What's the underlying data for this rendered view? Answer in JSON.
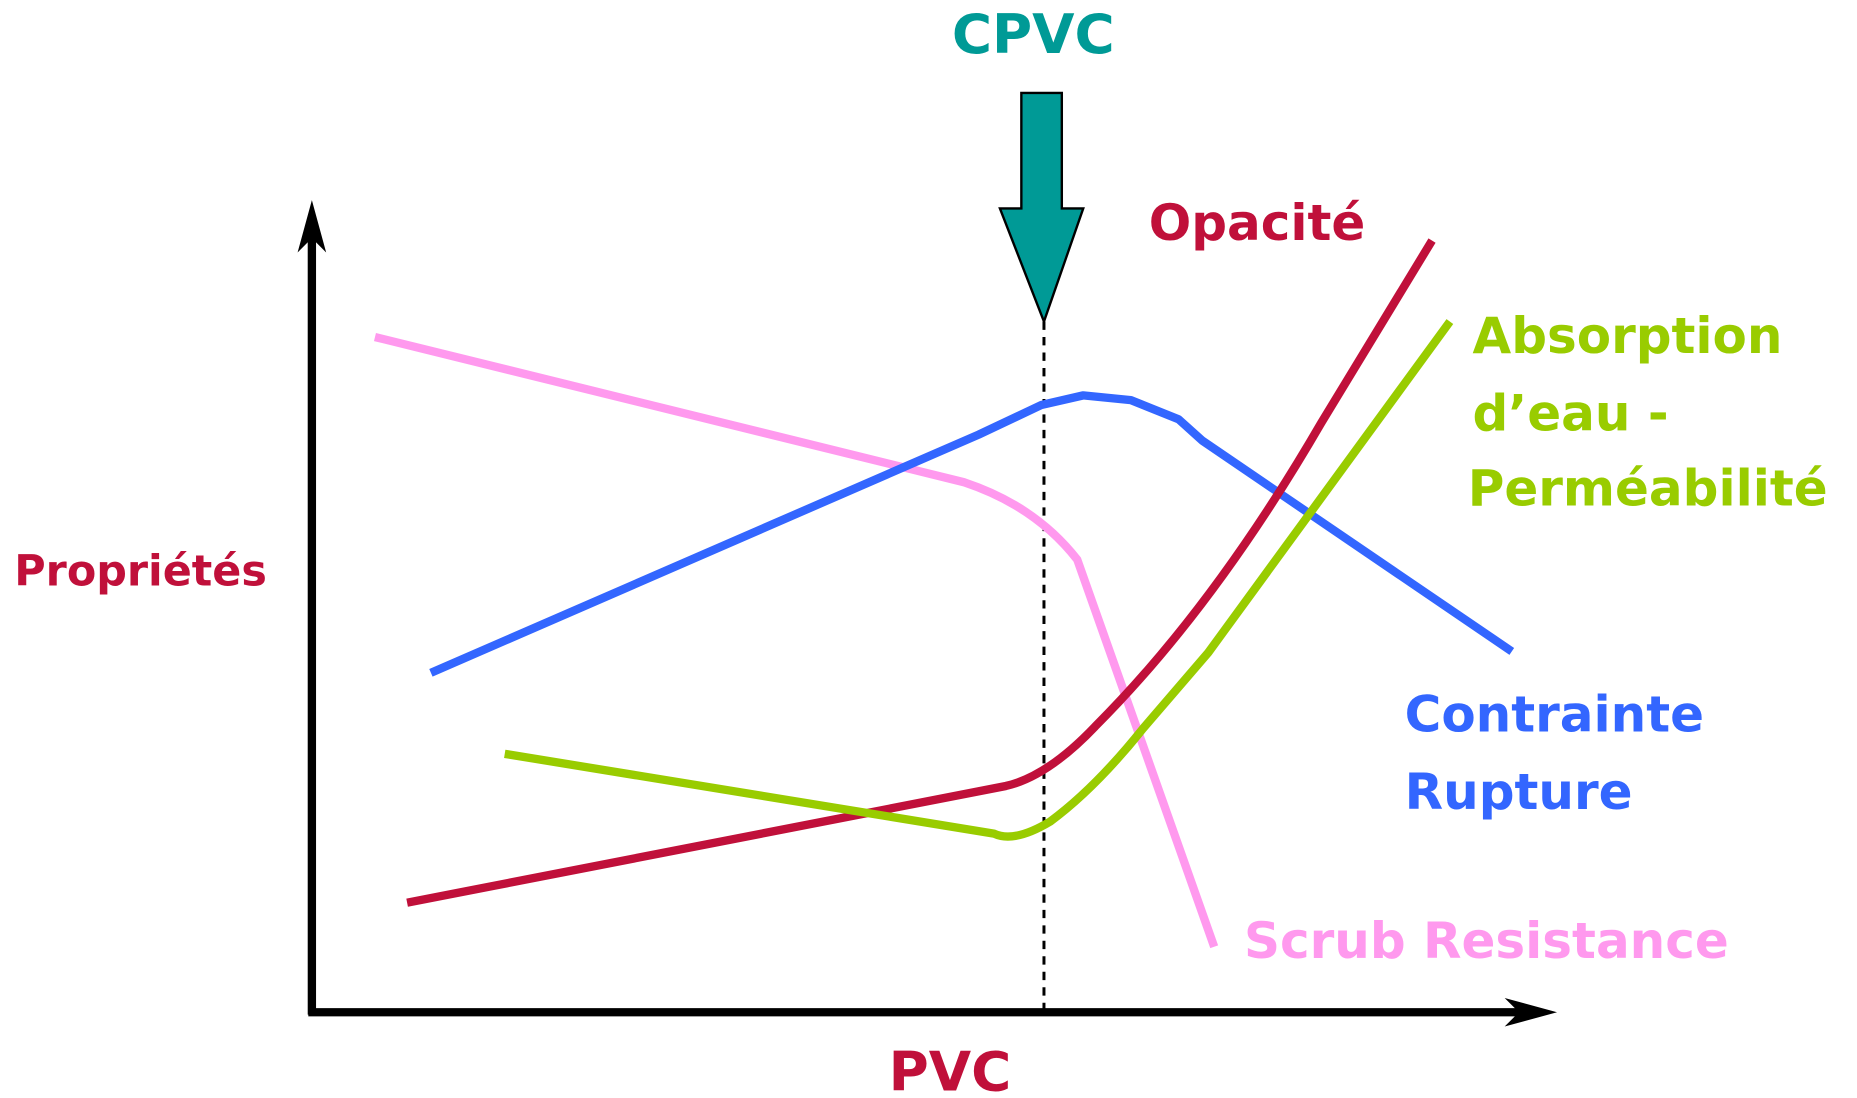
{
  "title": "CPVC",
  "x_axis_label": "PVC",
  "y_axis_label": "Propriétés",
  "curves": [
    {
      "label": [
        "Opacité"
      ]
    },
    {
      "label": [
        "Absorption",
        "d’eau -",
        "Perméabilité"
      ]
    },
    {
      "label": [
        "Contrainte",
        "Rupture"
      ]
    },
    {
      "label": [
        "Scrub Resistance"
      ]
    }
  ]
}
